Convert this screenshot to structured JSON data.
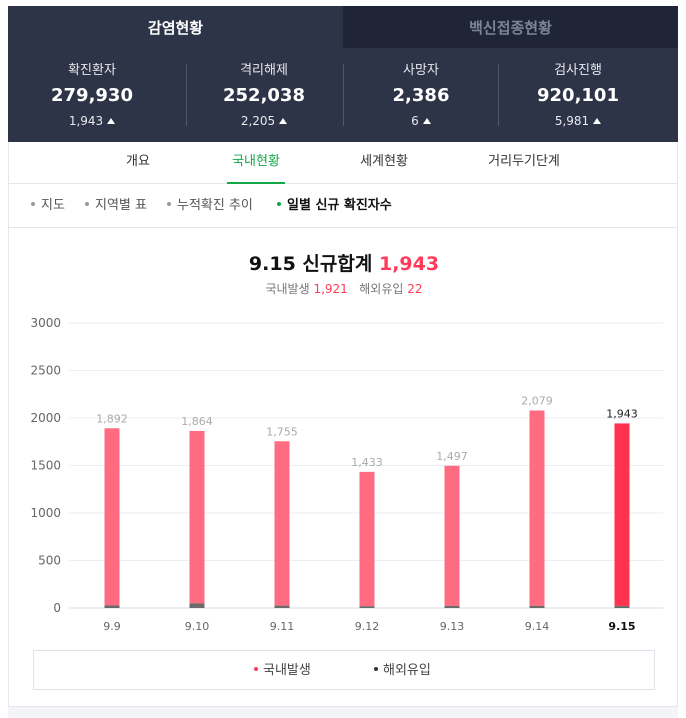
{
  "top_tabs": [
    {
      "label": "감염현황"
    },
    {
      "label": "백신접종현황"
    }
  ],
  "stats": [
    {
      "label": "확진환자",
      "value": "279,930",
      "change": "1,943"
    },
    {
      "label": "격리해제",
      "value": "252,038",
      "change": "2,205"
    },
    {
      "label": "사망자",
      "value": "2,386",
      "change": "6"
    },
    {
      "label": "검사진행",
      "value": "920,101",
      "change": "5,981"
    }
  ],
  "subnav": [
    {
      "label": "개요"
    },
    {
      "label": "국내현황"
    },
    {
      "label": "세계현황"
    },
    {
      "label": "거리두기단계"
    }
  ],
  "filters": [
    {
      "label": "지도"
    },
    {
      "label": "지역별 표"
    },
    {
      "label": "누적확진 추이"
    },
    {
      "label": "일별 신규 확진자수"
    }
  ],
  "headline": {
    "prefix": "9.15 신규합계",
    "total": "1,943"
  },
  "subline": {
    "domestic_label": "국내발생",
    "domestic_value": "1,921",
    "overseas_label": "해외유입",
    "overseas_value": "22"
  },
  "legend": {
    "domestic": "국내발생",
    "overseas": "해외유입"
  },
  "colors": {
    "domestic": "#ff6b81",
    "domestic_latest": "#ff3350",
    "overseas": "#6b6b6b",
    "accent_green": "#11a848",
    "header_bg": "#2d3447"
  },
  "chart_data": {
    "type": "bar",
    "stacked": true,
    "categories": [
      "9.9",
      "9.10",
      "9.11",
      "9.12",
      "9.13",
      "9.14",
      "9.15"
    ],
    "totals": [
      1892,
      1864,
      1755,
      1433,
      1497,
      2079,
      1943
    ],
    "total_labels": [
      "1,892",
      "1,864",
      "1,755",
      "1,433",
      "1,497",
      "2,079",
      "1,943"
    ],
    "series": [
      {
        "name": "국내발생",
        "values": [
          1865,
          1816,
          1730,
          1414,
          1475,
          2057,
          1921
        ]
      },
      {
        "name": "해외유입",
        "values": [
          27,
          48,
          25,
          19,
          22,
          22,
          22
        ]
      }
    ],
    "yticks": [
      0,
      500,
      1000,
      1500,
      2000,
      2500,
      3000
    ],
    "ylim": [
      0,
      3000
    ],
    "highlight_index": 6,
    "grid": true
  }
}
